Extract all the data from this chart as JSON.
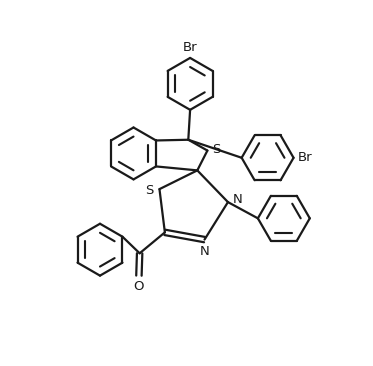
{
  "background_color": "#ffffff",
  "line_color": "#1a1a1a",
  "line_width": 1.6,
  "figsize": [
    3.73,
    3.66
  ],
  "dpi": 100,
  "xlim": [
    0,
    10
  ],
  "ylim": [
    0,
    10
  ],
  "r_ring": 0.72,
  "r_inner_scale": 0.65,
  "font_size": 9.5
}
